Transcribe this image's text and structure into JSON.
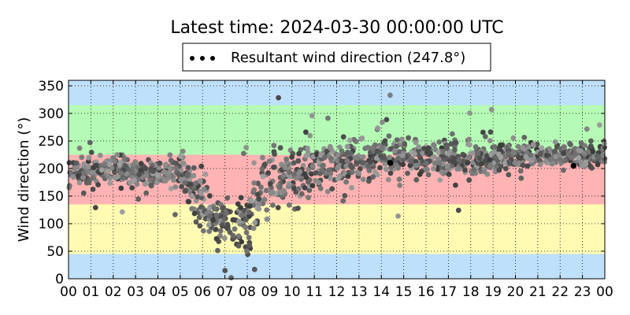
{
  "chart_data": {
    "type": "scatter",
    "title": "Latest time: 2024-03-30 00:00:00 UTC",
    "xlabel": "",
    "ylabel": "Wind direction (°)",
    "xlim": [
      0,
      24
    ],
    "ylim": [
      0,
      360
    ],
    "grid": true,
    "legend_position": "top-center",
    "x_tick_labels": [
      "00",
      "01",
      "02",
      "03",
      "04",
      "05",
      "06",
      "07",
      "08",
      "09",
      "10",
      "11",
      "12",
      "13",
      "14",
      "15",
      "16",
      "17",
      "18",
      "19",
      "20",
      "21",
      "22",
      "23",
      "00"
    ],
    "y_ticks": [
      0,
      50,
      100,
      150,
      200,
      250,
      300,
      350
    ],
    "series": [
      {
        "name": "Resultant wind direction (247.8°)",
        "marker_color": "#000000",
        "description_trend": [
          {
            "hour": 0.0,
            "center": 190,
            "spread": 25
          },
          {
            "hour": 1.0,
            "center": 195,
            "spread": 20
          },
          {
            "hour": 2.0,
            "center": 200,
            "spread": 20
          },
          {
            "hour": 3.0,
            "center": 195,
            "spread": 20
          },
          {
            "hour": 4.0,
            "center": 190,
            "spread": 22
          },
          {
            "hour": 5.0,
            "center": 195,
            "spread": 30
          },
          {
            "hour": 5.8,
            "center": 150,
            "spread": 50
          },
          {
            "hour": 6.5,
            "center": 110,
            "spread": 40
          },
          {
            "hour": 7.5,
            "center": 95,
            "spread": 35
          },
          {
            "hour": 8.2,
            "center": 120,
            "spread": 60
          },
          {
            "hour": 9.0,
            "center": 170,
            "spread": 55
          },
          {
            "hour": 10.0,
            "center": 185,
            "spread": 50
          },
          {
            "hour": 11.0,
            "center": 200,
            "spread": 40
          },
          {
            "hour": 12.0,
            "center": 210,
            "spread": 35
          },
          {
            "hour": 13.0,
            "center": 215,
            "spread": 35
          },
          {
            "hour": 14.0,
            "center": 215,
            "spread": 35
          },
          {
            "hour": 15.0,
            "center": 220,
            "spread": 35
          },
          {
            "hour": 16.0,
            "center": 220,
            "spread": 30
          },
          {
            "hour": 17.0,
            "center": 215,
            "spread": 30
          },
          {
            "hour": 18.0,
            "center": 215,
            "spread": 30
          },
          {
            "hour": 19.0,
            "center": 215,
            "spread": 25
          },
          {
            "hour": 20.0,
            "center": 220,
            "spread": 22
          },
          {
            "hour": 21.0,
            "center": 225,
            "spread": 18
          },
          {
            "hour": 22.0,
            "center": 225,
            "spread": 18
          },
          {
            "hour": 23.0,
            "center": 225,
            "spread": 18
          },
          {
            "hour": 24.0,
            "center": 225,
            "spread": 18
          }
        ],
        "highlight_points": [
          {
            "x": 14.4,
            "y": 210
          },
          {
            "x": 22.6,
            "y": 205
          }
        ]
      }
    ],
    "background_bands": [
      {
        "from": 0,
        "to": 45,
        "color": "#bfe0fb"
      },
      {
        "from": 45,
        "to": 135,
        "color": "#fffbb3"
      },
      {
        "from": 135,
        "to": 225,
        "color": "#ffb3b3"
      },
      {
        "from": 225,
        "to": 315,
        "color": "#b5fbb5"
      },
      {
        "from": 315,
        "to": 360,
        "color": "#bfe0fb"
      }
    ]
  }
}
